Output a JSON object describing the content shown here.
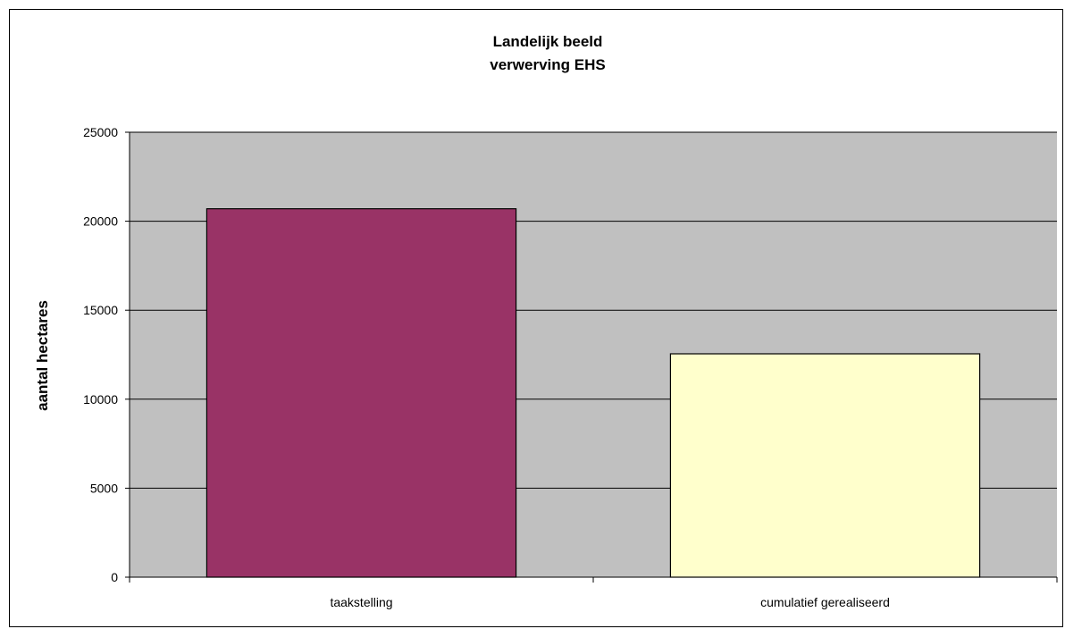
{
  "chart_data": {
    "type": "bar",
    "title": [
      "Landelijk beeld",
      "verwerving EHS"
    ],
    "xlabel": "",
    "ylabel": "aantal hectares",
    "categories": [
      "taakstelling",
      "cumulatief gerealiseerd"
    ],
    "values": [
      20700,
      12550
    ],
    "ylim": [
      0,
      25000
    ],
    "yticks": [
      0,
      5000,
      10000,
      15000,
      20000,
      25000
    ],
    "grid": true,
    "legend": "none",
    "colors": {
      "plot_background": "#c0c0c0",
      "bars": [
        "#993366",
        "#ffffcc"
      ],
      "bar_outline": "#000000",
      "gridline": "#000000"
    }
  }
}
